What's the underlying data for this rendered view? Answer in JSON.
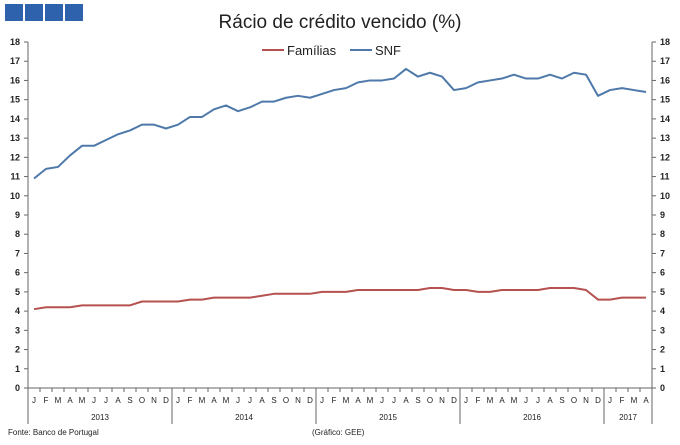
{
  "brand": {
    "logo_colors": [
      "#2f62ad",
      "#2f62ad",
      "#2f62ad",
      "#2f62ad"
    ]
  },
  "footer": {
    "source": "Fonte: Banco de Portugal",
    "credit": "(Gráfico: GEE)"
  },
  "chart_data": {
    "type": "line",
    "title": "Rácio de crédito vencido (%)",
    "xlabel": "",
    "ylabel": "",
    "ylim": [
      0,
      18
    ],
    "yticks": [
      0,
      1,
      2,
      3,
      4,
      5,
      6,
      7,
      8,
      9,
      10,
      11,
      12,
      13,
      14,
      15,
      16,
      17,
      18
    ],
    "grid": false,
    "legend_position": "top-center",
    "x": [
      "J",
      "F",
      "M",
      "A",
      "M",
      "J",
      "J",
      "A",
      "S",
      "O",
      "N",
      "D",
      "J",
      "F",
      "M",
      "A",
      "M",
      "J",
      "J",
      "A",
      "S",
      "O",
      "N",
      "D",
      "J",
      "F",
      "M",
      "A",
      "M",
      "J",
      "J",
      "A",
      "S",
      "O",
      "N",
      "D",
      "J",
      "F",
      "M",
      "A",
      "M",
      "J",
      "J",
      "A",
      "S",
      "O",
      "N",
      "D",
      "J",
      "F",
      "M",
      "A"
    ],
    "years": [
      {
        "label": "2013",
        "months": 12
      },
      {
        "label": "2014",
        "months": 12
      },
      {
        "label": "2015",
        "months": 12
      },
      {
        "label": "2016",
        "months": 12
      },
      {
        "label": "2017",
        "months": 4
      }
    ],
    "series": [
      {
        "name": "Famílias",
        "color": "#b5524f",
        "values": [
          4.1,
          4.2,
          4.2,
          4.2,
          4.3,
          4.3,
          4.3,
          4.3,
          4.3,
          4.5,
          4.5,
          4.5,
          4.5,
          4.6,
          4.6,
          4.7,
          4.7,
          4.7,
          4.7,
          4.8,
          4.9,
          4.9,
          4.9,
          4.9,
          5.0,
          5.0,
          5.0,
          5.1,
          5.1,
          5.1,
          5.1,
          5.1,
          5.1,
          5.2,
          5.2,
          5.1,
          5.1,
          5.0,
          5.0,
          5.1,
          5.1,
          5.1,
          5.1,
          5.2,
          5.2,
          5.2,
          5.1,
          4.6,
          4.6,
          4.7,
          4.7,
          4.7
        ]
      },
      {
        "name": "SNF",
        "color": "#4e79aa",
        "values": [
          10.9,
          11.4,
          11.5,
          12.1,
          12.6,
          12.6,
          12.9,
          13.2,
          13.4,
          13.7,
          13.7,
          13.5,
          13.7,
          14.1,
          14.1,
          14.5,
          14.7,
          14.4,
          14.6,
          14.9,
          14.9,
          15.1,
          15.2,
          15.1,
          15.3,
          15.5,
          15.6,
          15.9,
          16.0,
          16.0,
          16.1,
          16.6,
          16.2,
          16.4,
          16.2,
          15.5,
          15.6,
          15.9,
          16.0,
          16.1,
          16.3,
          16.1,
          16.1,
          16.3,
          16.1,
          16.4,
          16.3,
          15.2,
          15.5,
          15.6,
          15.5,
          15.4
        ]
      }
    ]
  }
}
